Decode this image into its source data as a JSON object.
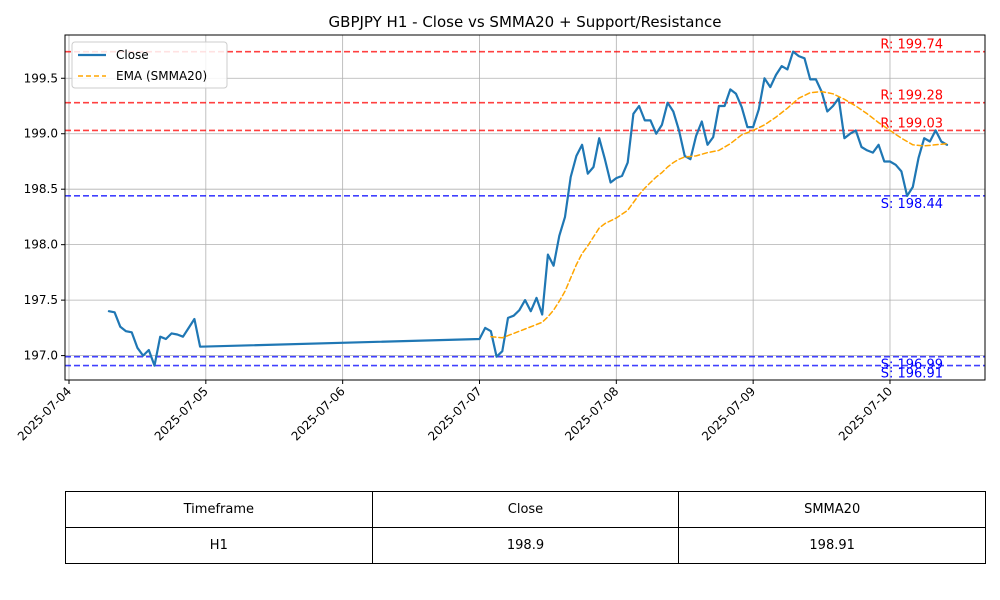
{
  "chart_data": {
    "type": "line",
    "title": "GBPJPY H1 - Close vs SMMA20 + Support/Resistance",
    "xlabel": "",
    "ylabel": "",
    "ylim": [
      196.78,
      199.89
    ],
    "x_tick_labels": [
      "2025-07-04",
      "2025-07-05",
      "2025-07-06",
      "2025-07-07",
      "2025-07-08",
      "2025-07-09",
      "2025-07-10"
    ],
    "y_tick_labels": [
      "197.0",
      "197.5",
      "198.0",
      "198.5",
      "199.0",
      "199.5"
    ],
    "grid": true,
    "legend_position": "top-left",
    "series": [
      {
        "name": "Close",
        "color": "#1f77b4",
        "style": "solid",
        "points": [
          [
            "2025-07-04 07:00",
            197.4
          ],
          [
            "2025-07-04 08:00",
            197.39
          ],
          [
            "2025-07-04 09:00",
            197.26
          ],
          [
            "2025-07-04 10:00",
            197.22
          ],
          [
            "2025-07-04 11:00",
            197.21
          ],
          [
            "2025-07-04 12:00",
            197.07
          ],
          [
            "2025-07-04 13:00",
            197.0
          ],
          [
            "2025-07-04 14:00",
            197.05
          ],
          [
            "2025-07-04 15:00",
            196.91
          ],
          [
            "2025-07-04 16:00",
            197.17
          ],
          [
            "2025-07-04 17:00",
            197.15
          ],
          [
            "2025-07-04 18:00",
            197.2
          ],
          [
            "2025-07-04 19:00",
            197.19
          ],
          [
            "2025-07-04 20:00",
            197.17
          ],
          [
            "2025-07-04 21:00",
            197.25
          ],
          [
            "2025-07-04 22:00",
            197.33
          ],
          [
            "2025-07-04 23:00",
            197.08
          ],
          [
            "2025-07-07 00:00",
            197.15
          ],
          [
            "2025-07-07 01:00",
            197.25
          ],
          [
            "2025-07-07 02:00",
            197.22
          ],
          [
            "2025-07-07 03:00",
            196.99
          ],
          [
            "2025-07-07 04:00",
            197.04
          ],
          [
            "2025-07-07 05:00",
            197.34
          ],
          [
            "2025-07-07 06:00",
            197.36
          ],
          [
            "2025-07-07 07:00",
            197.41
          ],
          [
            "2025-07-07 08:00",
            197.5
          ],
          [
            "2025-07-07 09:00",
            197.4
          ],
          [
            "2025-07-07 10:00",
            197.52
          ],
          [
            "2025-07-07 11:00",
            197.37
          ],
          [
            "2025-07-07 12:00",
            197.91
          ],
          [
            "2025-07-07 13:00",
            197.81
          ],
          [
            "2025-07-07 14:00",
            198.08
          ],
          [
            "2025-07-07 15:00",
            198.25
          ],
          [
            "2025-07-07 16:00",
            198.61
          ],
          [
            "2025-07-07 17:00",
            198.8
          ],
          [
            "2025-07-07 18:00",
            198.9
          ],
          [
            "2025-07-07 19:00",
            198.64
          ],
          [
            "2025-07-07 20:00",
            198.7
          ],
          [
            "2025-07-07 21:00",
            198.96
          ],
          [
            "2025-07-07 22:00",
            198.77
          ],
          [
            "2025-07-07 23:00",
            198.56
          ],
          [
            "2025-07-08 00:00",
            198.6
          ],
          [
            "2025-07-08 01:00",
            198.62
          ],
          [
            "2025-07-08 02:00",
            198.74
          ],
          [
            "2025-07-08 03:00",
            199.18
          ],
          [
            "2025-07-08 04:00",
            199.25
          ],
          [
            "2025-07-08 05:00",
            199.12
          ],
          [
            "2025-07-08 06:00",
            199.12
          ],
          [
            "2025-07-08 07:00",
            199.0
          ],
          [
            "2025-07-08 08:00",
            199.08
          ],
          [
            "2025-07-08 09:00",
            199.28
          ],
          [
            "2025-07-08 10:00",
            199.2
          ],
          [
            "2025-07-08 11:00",
            199.03
          ],
          [
            "2025-07-08 12:00",
            198.8
          ],
          [
            "2025-07-08 13:00",
            198.77
          ],
          [
            "2025-07-08 14:00",
            198.98
          ],
          [
            "2025-07-08 15:00",
            199.11
          ],
          [
            "2025-07-08 16:00",
            198.9
          ],
          [
            "2025-07-08 17:00",
            198.97
          ],
          [
            "2025-07-08 18:00",
            199.25
          ],
          [
            "2025-07-08 19:00",
            199.25
          ],
          [
            "2025-07-08 20:00",
            199.4
          ],
          [
            "2025-07-08 21:00",
            199.36
          ],
          [
            "2025-07-08 22:00",
            199.24
          ],
          [
            "2025-07-08 23:00",
            199.06
          ],
          [
            "2025-07-09 00:00",
            199.06
          ],
          [
            "2025-07-09 01:00",
            199.22
          ],
          [
            "2025-07-09 02:00",
            199.5
          ],
          [
            "2025-07-09 03:00",
            199.42
          ],
          [
            "2025-07-09 04:00",
            199.53
          ],
          [
            "2025-07-09 05:00",
            199.61
          ],
          [
            "2025-07-09 06:00",
            199.58
          ],
          [
            "2025-07-09 07:00",
            199.74
          ],
          [
            "2025-07-09 08:00",
            199.7
          ],
          [
            "2025-07-09 09:00",
            199.68
          ],
          [
            "2025-07-09 10:00",
            199.49
          ],
          [
            "2025-07-09 11:00",
            199.49
          ],
          [
            "2025-07-09 12:00",
            199.38
          ],
          [
            "2025-07-09 13:00",
            199.2
          ],
          [
            "2025-07-09 14:00",
            199.25
          ],
          [
            "2025-07-09 15:00",
            199.32
          ],
          [
            "2025-07-09 16:00",
            198.96
          ],
          [
            "2025-07-09 17:00",
            199.0
          ],
          [
            "2025-07-09 18:00",
            199.03
          ],
          [
            "2025-07-09 19:00",
            198.88
          ],
          [
            "2025-07-09 20:00",
            198.85
          ],
          [
            "2025-07-09 21:00",
            198.83
          ],
          [
            "2025-07-09 22:00",
            198.9
          ],
          [
            "2025-07-09 23:00",
            198.75
          ],
          [
            "2025-07-10 00:00",
            198.75
          ],
          [
            "2025-07-10 01:00",
            198.72
          ],
          [
            "2025-07-10 02:00",
            198.66
          ],
          [
            "2025-07-10 03:00",
            198.44
          ],
          [
            "2025-07-10 04:00",
            198.52
          ],
          [
            "2025-07-10 05:00",
            198.78
          ],
          [
            "2025-07-10 06:00",
            198.96
          ],
          [
            "2025-07-10 07:00",
            198.93
          ],
          [
            "2025-07-10 08:00",
            199.03
          ],
          [
            "2025-07-10 09:00",
            198.93
          ],
          [
            "2025-07-10 10:00",
            198.9
          ]
        ]
      },
      {
        "name": "EMA (SMMA20)",
        "color": "#ffa500",
        "style": "dashed",
        "points": [
          [
            "2025-07-07 02:00",
            197.17
          ],
          [
            "2025-07-07 04:00",
            197.16
          ],
          [
            "2025-07-07 06:00",
            197.2
          ],
          [
            "2025-07-07 08:00",
            197.24
          ],
          [
            "2025-07-07 10:00",
            197.28
          ],
          [
            "2025-07-07 11:00",
            197.3
          ],
          [
            "2025-07-07 12:00",
            197.35
          ],
          [
            "2025-07-07 13:00",
            197.41
          ],
          [
            "2025-07-07 14:00",
            197.49
          ],
          [
            "2025-07-07 15:00",
            197.58
          ],
          [
            "2025-07-07 16:00",
            197.7
          ],
          [
            "2025-07-07 17:00",
            197.82
          ],
          [
            "2025-07-07 18:00",
            197.92
          ],
          [
            "2025-07-07 19:00",
            197.99
          ],
          [
            "2025-07-07 20:00",
            198.07
          ],
          [
            "2025-07-07 21:00",
            198.15
          ],
          [
            "2025-07-07 22:00",
            198.19
          ],
          [
            "2025-07-08 00:00",
            198.24
          ],
          [
            "2025-07-08 02:00",
            198.31
          ],
          [
            "2025-07-08 03:00",
            198.38
          ],
          [
            "2025-07-08 04:00",
            198.45
          ],
          [
            "2025-07-08 05:00",
            198.51
          ],
          [
            "2025-07-08 06:00",
            198.56
          ],
          [
            "2025-07-08 07:00",
            198.61
          ],
          [
            "2025-07-08 08:00",
            198.65
          ],
          [
            "2025-07-08 09:00",
            198.7
          ],
          [
            "2025-07-08 10:00",
            198.74
          ],
          [
            "2025-07-08 11:00",
            198.77
          ],
          [
            "2025-07-08 12:00",
            198.79
          ],
          [
            "2025-07-08 14:00",
            198.8
          ],
          [
            "2025-07-08 16:00",
            198.83
          ],
          [
            "2025-07-08 18:00",
            198.85
          ],
          [
            "2025-07-08 20:00",
            198.91
          ],
          [
            "2025-07-08 22:00",
            198.99
          ],
          [
            "2025-07-09 00:00",
            199.03
          ],
          [
            "2025-07-09 02:00",
            199.08
          ],
          [
            "2025-07-09 04:00",
            199.15
          ],
          [
            "2025-07-09 06:00",
            199.23
          ],
          [
            "2025-07-09 08:00",
            199.32
          ],
          [
            "2025-07-09 10:00",
            199.37
          ],
          [
            "2025-07-09 12:00",
            199.38
          ],
          [
            "2025-07-09 14:00",
            199.36
          ],
          [
            "2025-07-09 16:00",
            199.31
          ],
          [
            "2025-07-09 18:00",
            199.25
          ],
          [
            "2025-07-09 20:00",
            199.18
          ],
          [
            "2025-07-09 22:00",
            199.1
          ],
          [
            "2025-07-10 00:00",
            199.03
          ],
          [
            "2025-07-10 02:00",
            198.96
          ],
          [
            "2025-07-10 04:00",
            198.9
          ],
          [
            "2025-07-10 06:00",
            198.89
          ],
          [
            "2025-07-10 08:00",
            198.9
          ],
          [
            "2025-07-10 10:00",
            198.91
          ]
        ]
      }
    ],
    "levels": [
      {
        "kind": "resistance",
        "value": 199.74,
        "label": "R: 199.74",
        "color": "#ff0000"
      },
      {
        "kind": "resistance",
        "value": 199.28,
        "label": "R: 199.28",
        "color": "#ff0000"
      },
      {
        "kind": "resistance",
        "value": 199.03,
        "label": "R: 199.03",
        "color": "#ff0000"
      },
      {
        "kind": "support",
        "value": 198.44,
        "label": "S: 198.44",
        "color": "#0000ff"
      },
      {
        "kind": "support",
        "value": 196.99,
        "label": "S: 196.99",
        "color": "#0000ff"
      },
      {
        "kind": "support",
        "value": 196.91,
        "label": "S: 196.91",
        "color": "#0000ff"
      }
    ]
  },
  "table": {
    "headers": [
      "Timeframe",
      "Close",
      "SMMA20"
    ],
    "rows": [
      [
        "H1",
        "198.9",
        "198.91"
      ]
    ]
  }
}
